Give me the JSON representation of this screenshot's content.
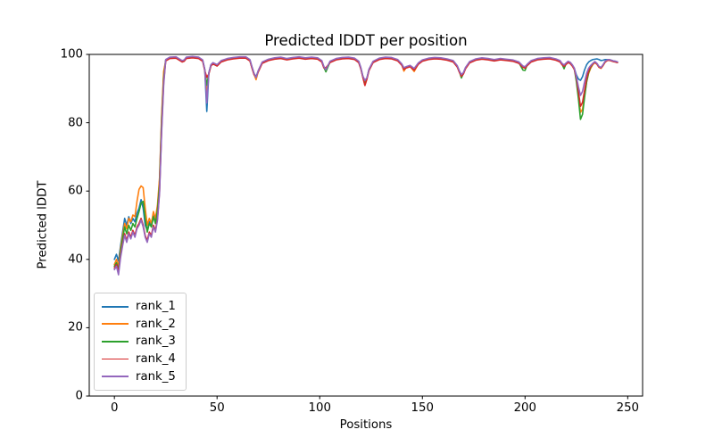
{
  "figure": {
    "title": "Predicted lDDT per position",
    "xlabel": "Positions",
    "ylabel": "Predicted lDDT",
    "background_color": "#ffffff",
    "spine_color": "#000000"
  },
  "chart_data": {
    "type": "line",
    "title": "Predicted lDDT per position",
    "xlabel": "Positions",
    "ylabel": "Predicted lDDT",
    "xlim": [
      -12.25,
      257.25
    ],
    "ylim": [
      0,
      100
    ],
    "xticks": [
      0,
      50,
      100,
      150,
      200,
      250
    ],
    "yticks": [
      0,
      20,
      40,
      60,
      80,
      100
    ],
    "grid": false,
    "legend_position": "lower left",
    "x": [
      0,
      1,
      2,
      3,
      4,
      5,
      6,
      7,
      8,
      9,
      10,
      11,
      12,
      13,
      14,
      15,
      16,
      17,
      18,
      19,
      20,
      21,
      22,
      23,
      24,
      25,
      27,
      30,
      33,
      34,
      35,
      38,
      41,
      43,
      44,
      45,
      46,
      47,
      48,
      50,
      52,
      55,
      58,
      61,
      64,
      66,
      67,
      68,
      69,
      70,
      72,
      75,
      78,
      81,
      84,
      87,
      90,
      93,
      96,
      99,
      101,
      102,
      103,
      105,
      108,
      111,
      114,
      117,
      119,
      120,
      121,
      122,
      123,
      124,
      126,
      129,
      132,
      135,
      138,
      140,
      141,
      142,
      144,
      146,
      148,
      150,
      153,
      156,
      159,
      162,
      165,
      167,
      168,
      169,
      170,
      171,
      173,
      176,
      179,
      182,
      185,
      188,
      191,
      194,
      197,
      199,
      200,
      201,
      203,
      206,
      209,
      212,
      215,
      217,
      218,
      219,
      220,
      221,
      222,
      223,
      224,
      225,
      226,
      227,
      228,
      229,
      230,
      231,
      232,
      233,
      234,
      235,
      236,
      237,
      238,
      239,
      240,
      241,
      242,
      243,
      244,
      245
    ],
    "series": [
      {
        "name": "rank_1",
        "color": "#1f77b4",
        "values": [
          40.0,
          41.5,
          39.5,
          44.0,
          48.0,
          52.0,
          50.0,
          52.5,
          50.5,
          52.0,
          51.0,
          53.5,
          55.0,
          57.5,
          55.0,
          50.0,
          48.5,
          51.0,
          50.0,
          53.5,
          51.5,
          55.0,
          63.0,
          81.0,
          94.0,
          98.4,
          99.1,
          99.2,
          98.1,
          98.3,
          99.1,
          99.3,
          99.1,
          98.3,
          95.6,
          83.3,
          94.6,
          96.9,
          97.5,
          96.9,
          98.1,
          98.7,
          99.0,
          99.2,
          99.2,
          98.4,
          96.3,
          94.4,
          93.5,
          95.1,
          97.7,
          98.5,
          98.9,
          99.1,
          98.7,
          99.0,
          99.2,
          98.9,
          99.1,
          98.9,
          98.1,
          96.4,
          95.4,
          97.9,
          98.7,
          99.0,
          99.1,
          98.8,
          97.9,
          96.1,
          93.6,
          92.0,
          93.1,
          95.6,
          97.9,
          98.8,
          99.1,
          99.0,
          98.4,
          97.1,
          96.0,
          96.3,
          96.7,
          95.8,
          97.4,
          98.3,
          98.8,
          99.0,
          98.9,
          98.6,
          98.1,
          96.6,
          95.1,
          93.9,
          94.6,
          96.1,
          97.8,
          98.6,
          98.9,
          98.7,
          98.4,
          98.7,
          98.5,
          98.3,
          97.7,
          96.5,
          96.3,
          97.0,
          98.1,
          98.7,
          98.9,
          99.0,
          98.6,
          98.1,
          97.3,
          96.8,
          97.4,
          97.9,
          97.6,
          96.9,
          95.9,
          94.0,
          92.8,
          92.4,
          93.5,
          95.5,
          97.0,
          97.8,
          98.2,
          98.5,
          98.6,
          98.7,
          98.5,
          98.2,
          98.3,
          98.5,
          98.5,
          98.5,
          98.3,
          98.1,
          98.0,
          97.8
        ]
      },
      {
        "name": "rank_2",
        "color": "#ff7f0e",
        "values": [
          38.5,
          40.0,
          38.0,
          43.0,
          47.0,
          50.5,
          49.0,
          52.0,
          51.0,
          53.0,
          52.5,
          57.0,
          60.5,
          61.5,
          61.0,
          55.0,
          50.0,
          52.0,
          50.5,
          54.0,
          52.0,
          56.0,
          64.0,
          82.0,
          95.0,
          98.2,
          98.9,
          99.0,
          97.9,
          98.1,
          98.9,
          99.1,
          98.9,
          98.1,
          95.4,
          88.5,
          94.4,
          96.7,
          97.3,
          96.7,
          97.9,
          98.5,
          98.8,
          99.0,
          99.0,
          98.2,
          96.1,
          94.2,
          92.6,
          94.9,
          97.5,
          98.3,
          98.7,
          98.9,
          98.5,
          98.8,
          99.0,
          98.7,
          98.9,
          98.7,
          97.9,
          96.2,
          95.2,
          97.7,
          98.5,
          98.8,
          98.9,
          98.6,
          97.7,
          95.9,
          93.4,
          91.4,
          92.9,
          95.4,
          97.7,
          98.6,
          98.9,
          98.8,
          98.2,
          96.9,
          95.1,
          96.1,
          96.5,
          95.0,
          97.2,
          98.1,
          98.6,
          98.8,
          98.7,
          98.4,
          97.9,
          96.4,
          94.9,
          93.7,
          94.4,
          95.9,
          97.6,
          98.4,
          98.7,
          98.5,
          98.2,
          98.5,
          98.3,
          98.1,
          97.5,
          96.2,
          96.0,
          96.8,
          97.9,
          98.5,
          98.7,
          98.8,
          98.4,
          97.9,
          97.1,
          96.4,
          97.2,
          97.7,
          97.4,
          96.7,
          95.7,
          93.0,
          88.5,
          83.0,
          84.0,
          88.0,
          92.0,
          94.5,
          96.0,
          97.0,
          97.6,
          97.1,
          96.2,
          95.9,
          96.7,
          97.7,
          98.2,
          98.3,
          98.1,
          97.9,
          97.8,
          97.6
        ]
      },
      {
        "name": "rank_3",
        "color": "#2ca02c",
        "values": [
          38.0,
          39.0,
          37.0,
          42.0,
          46.0,
          49.5,
          47.5,
          50.0,
          48.5,
          50.5,
          49.5,
          52.0,
          54.0,
          56.5,
          57.0,
          52.0,
          48.0,
          50.5,
          49.5,
          52.5,
          50.5,
          54.5,
          62.0,
          80.0,
          93.0,
          98.3,
          99.0,
          99.1,
          98.0,
          98.2,
          99.0,
          99.2,
          99.0,
          98.2,
          95.5,
          91.0,
          94.5,
          96.8,
          97.4,
          96.8,
          98.0,
          98.6,
          98.9,
          99.1,
          99.1,
          98.3,
          96.2,
          94.3,
          93.3,
          95.0,
          97.6,
          98.4,
          98.8,
          99.0,
          98.6,
          98.9,
          99.1,
          98.8,
          99.0,
          98.8,
          98.0,
          96.3,
          94.9,
          97.8,
          98.6,
          98.9,
          99.0,
          98.7,
          97.8,
          96.0,
          93.5,
          91.1,
          93.0,
          95.5,
          97.8,
          98.7,
          99.0,
          98.9,
          98.3,
          97.0,
          95.8,
          96.2,
          96.6,
          95.5,
          97.3,
          98.2,
          98.7,
          98.9,
          98.8,
          98.5,
          98.0,
          96.5,
          95.0,
          93.1,
          94.5,
          96.0,
          97.7,
          98.5,
          98.8,
          98.6,
          98.3,
          98.6,
          98.4,
          98.2,
          97.6,
          95.4,
          95.3,
          96.9,
          98.0,
          98.6,
          98.8,
          98.9,
          98.5,
          98.0,
          97.2,
          95.8,
          97.3,
          97.8,
          97.5,
          96.8,
          95.8,
          92.0,
          87.0,
          81.0,
          82.5,
          87.5,
          92.0,
          94.8,
          96.3,
          97.2,
          97.8,
          97.3,
          96.4,
          96.1,
          96.9,
          97.9,
          98.3,
          98.4,
          98.2,
          98.0,
          97.9,
          97.7
        ]
      },
      {
        "name": "rank_4",
        "color": "#d62728",
        "values": [
          37.5,
          38.5,
          36.5,
          41.0,
          44.5,
          47.5,
          45.5,
          48.0,
          46.5,
          48.5,
          47.0,
          49.5,
          50.5,
          52.0,
          50.0,
          47.0,
          45.5,
          48.0,
          47.0,
          50.0,
          48.5,
          52.0,
          60.0,
          78.0,
          92.0,
          98.1,
          98.8,
          98.9,
          97.8,
          98.0,
          98.8,
          99.0,
          98.8,
          98.0,
          95.3,
          93.3,
          94.3,
          96.6,
          97.2,
          96.6,
          97.8,
          98.4,
          98.7,
          98.9,
          98.9,
          98.1,
          96.0,
          94.1,
          93.4,
          94.8,
          97.4,
          98.2,
          98.6,
          98.8,
          98.4,
          98.7,
          98.9,
          98.6,
          98.8,
          98.6,
          97.8,
          96.1,
          96.1,
          97.6,
          98.4,
          98.7,
          98.8,
          98.5,
          97.6,
          95.8,
          93.3,
          90.9,
          92.8,
          95.3,
          97.6,
          98.5,
          98.8,
          98.7,
          98.1,
          96.8,
          95.6,
          96.0,
          96.4,
          95.4,
          97.1,
          98.0,
          98.5,
          98.7,
          98.6,
          98.3,
          97.8,
          96.3,
          94.8,
          93.6,
          94.3,
          95.8,
          97.5,
          98.3,
          98.6,
          98.4,
          98.1,
          98.4,
          98.2,
          98.0,
          97.4,
          96.2,
          96.0,
          96.7,
          97.8,
          98.4,
          98.6,
          98.7,
          98.3,
          97.8,
          97.0,
          96.5,
          97.1,
          97.6,
          97.3,
          96.6,
          95.6,
          93.0,
          89.0,
          84.8,
          86.0,
          89.5,
          93.0,
          95.2,
          96.5,
          97.2,
          97.7,
          97.2,
          96.3,
          96.0,
          96.8,
          97.8,
          98.2,
          98.3,
          98.1,
          97.9,
          97.8,
          97.6
        ]
      },
      {
        "name": "rank_5",
        "color": "#9467bd",
        "values": [
          37.0,
          38.0,
          35.5,
          40.5,
          44.0,
          47.0,
          45.0,
          47.5,
          46.0,
          48.0,
          46.5,
          49.0,
          50.0,
          51.5,
          49.5,
          46.5,
          45.0,
          47.5,
          46.5,
          49.5,
          48.0,
          51.5,
          59.5,
          77.0,
          91.0,
          98.5,
          99.2,
          99.3,
          98.2,
          98.4,
          99.2,
          99.4,
          99.2,
          98.4,
          95.7,
          85.8,
          94.7,
          97.0,
          97.6,
          97.0,
          98.2,
          98.8,
          99.1,
          99.3,
          99.3,
          98.5,
          96.4,
          94.5,
          93.2,
          95.2,
          97.8,
          98.6,
          99.0,
          99.2,
          98.8,
          99.1,
          99.3,
          99.0,
          99.2,
          99.0,
          98.2,
          96.5,
          95.5,
          98.0,
          98.8,
          99.1,
          99.2,
          98.9,
          98.0,
          96.2,
          93.7,
          92.4,
          93.2,
          95.7,
          98.0,
          98.9,
          99.2,
          99.1,
          98.5,
          97.2,
          96.1,
          96.4,
          96.8,
          95.9,
          97.5,
          98.4,
          98.9,
          99.1,
          99.0,
          98.7,
          98.2,
          96.7,
          95.2,
          94.1,
          94.7,
          96.2,
          97.9,
          98.7,
          99.0,
          98.8,
          98.5,
          98.8,
          98.6,
          98.4,
          97.8,
          96.6,
          96.4,
          97.1,
          98.2,
          98.8,
          99.0,
          99.1,
          98.7,
          98.2,
          97.4,
          96.9,
          97.5,
          98.0,
          97.7,
          97.0,
          96.0,
          93.5,
          90.5,
          88.0,
          89.2,
          92.0,
          94.5,
          96.0,
          96.8,
          97.4,
          97.9,
          97.4,
          96.5,
          96.2,
          97.0,
          98.0,
          98.4,
          98.5,
          98.3,
          98.1,
          98.0,
          97.8
        ]
      }
    ]
  }
}
